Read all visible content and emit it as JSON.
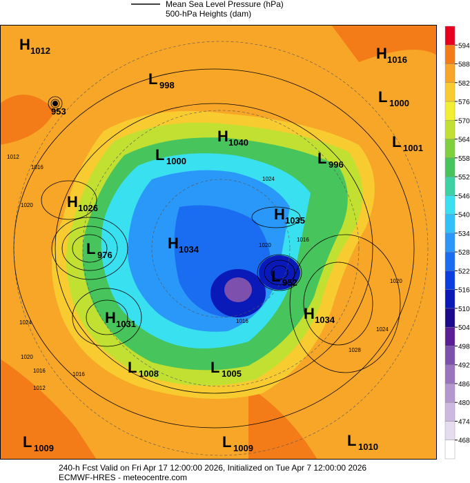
{
  "header": {
    "legend": [
      "Mean Sea Level Pressure (hPa)",
      "500-hPa Heights (dam)"
    ]
  },
  "colorbar": {
    "ticks": [
      468,
      474,
      480,
      486,
      492,
      498,
      504,
      510,
      516,
      522,
      528,
      534,
      540,
      546,
      552,
      558,
      564,
      570,
      576,
      582,
      588,
      594
    ],
    "colors": [
      "#ffffff",
      "#e6dcef",
      "#cdb9df",
      "#b497cf",
      "#9a74bf",
      "#7e50ad",
      "#5a1f94",
      "#1c0a8c",
      "#0a1ab8",
      "#0a3ee0",
      "#1a6cf0",
      "#2a98f8",
      "#30c0fa",
      "#38e0f0",
      "#3cd2a4",
      "#48c45c",
      "#7ed03c",
      "#c2e032",
      "#f2ee30",
      "#f8cc30",
      "#f8a628",
      "#f47c18",
      "#e80020"
    ]
  },
  "pressure_centers": [
    {
      "letter": "H",
      "value": "1012"
    },
    {
      "value": "953"
    },
    {
      "letter": "L",
      "value": "998"
    },
    {
      "letter": "H",
      "value": "1016"
    },
    {
      "letter": "L",
      "value": "1000"
    },
    {
      "letter": "L",
      "value": "1001"
    },
    {
      "letter": "H",
      "value": "1040"
    },
    {
      "letter": "L",
      "value": "1000"
    },
    {
      "letter": "L",
      "value": "996"
    },
    {
      "letter": "H",
      "value": "1026"
    },
    {
      "letter": "H",
      "value": "1035"
    },
    {
      "letter": "L",
      "value": "976"
    },
    {
      "letter": "H",
      "value": "1034"
    },
    {
      "letter": "L",
      "value": "952"
    },
    {
      "letter": "H",
      "value": "1031"
    },
    {
      "letter": "H",
      "value": "1034"
    },
    {
      "letter": "L",
      "value": "1008"
    },
    {
      "letter": "L",
      "value": "1005"
    },
    {
      "letter": "L",
      "value": "1009"
    },
    {
      "letter": "L",
      "value": "1009"
    },
    {
      "letter": "L",
      "value": "1010"
    }
  ],
  "isobar_labels": [
    "1012",
    "1016",
    "1020",
    "1024",
    "1020",
    "1016",
    "1012",
    "1016",
    "1020",
    "1024",
    "1028",
    "1016",
    "1024",
    "1020",
    "1016"
  ],
  "footer": [
    "240-h Fcst Valid on Fri Apr 17 12:00:00 2026, Initialized on Tue Apr  7 12:00:00 2026",
    "ECMWF-HRES - meteocentre.com"
  ]
}
